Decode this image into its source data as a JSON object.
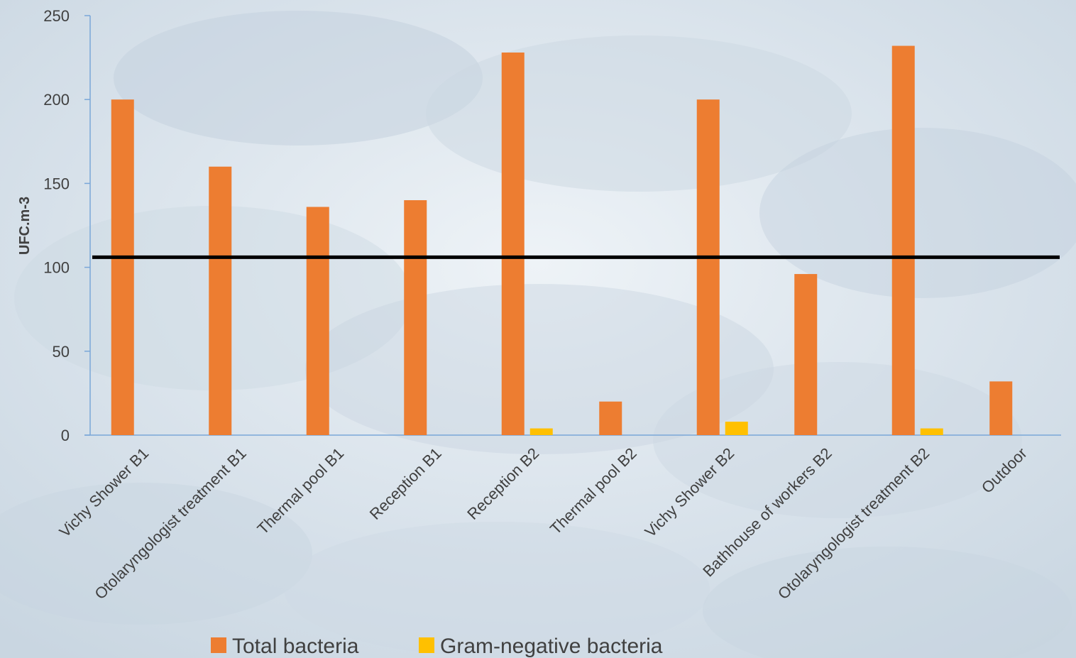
{
  "chart_data": {
    "type": "bar",
    "title": "",
    "xlabel": "",
    "ylabel": "UFC.m-3",
    "ylim": [
      0,
      250
    ],
    "yticks": [
      0,
      50,
      100,
      150,
      200,
      250
    ],
    "grid": false,
    "legend_position": "bottom",
    "categories": [
      "Vichy Shower B1",
      "Otolaryngologist treatment B1",
      "Thermal pool B1",
      "Reception B1",
      "Reception B2",
      "Thermal pool B2",
      "Vichy Shower B2",
      "Bathhouse of workers B2",
      "Otolaryngologist treatment B2",
      "Outdoor"
    ],
    "series": [
      {
        "name": "Total bacteria",
        "color": "#ed7d31",
        "values": [
          200,
          160,
          136,
          140,
          228,
          20,
          200,
          96,
          232,
          32
        ]
      },
      {
        "name": "Gram-negative bacteria",
        "color": "#ffc000",
        "values": [
          0,
          0,
          0,
          0,
          4,
          0,
          8,
          0,
          4,
          0
        ]
      }
    ],
    "reference_line": {
      "value": 106,
      "color": "#000000"
    }
  }
}
